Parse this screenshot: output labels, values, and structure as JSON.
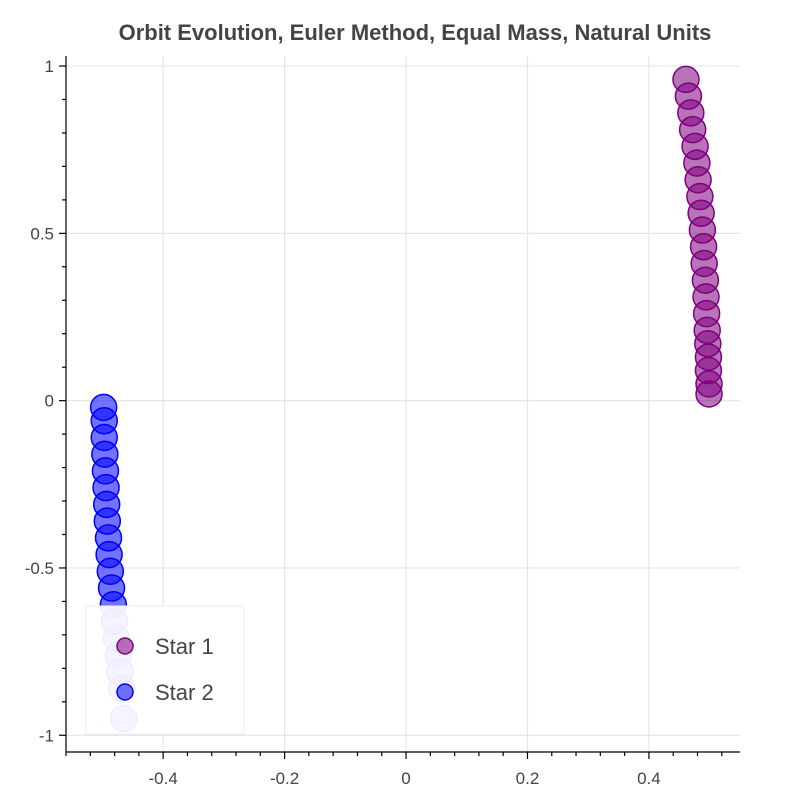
{
  "chart_data": {
    "type": "scatter",
    "title": "Orbit Evolution, Euler Method, Equal Mass, Natural Units",
    "xlabel": "",
    "ylabel": "",
    "xlim": [
      -0.56,
      0.55
    ],
    "ylim": [
      -1.05,
      1.03
    ],
    "grid": true,
    "legend_placement": "bottom-left",
    "x_ticks": [
      -0.4,
      -0.2,
      0,
      0.2,
      0.4
    ],
    "x_tick_labels": [
      "-0.4",
      "-0.2",
      "0",
      "0.2",
      "0.4"
    ],
    "y_ticks": [
      -1,
      -0.5,
      0,
      0.5,
      1
    ],
    "y_tick_labels": [
      "-1",
      "-0.5",
      "0",
      "0.5",
      "1"
    ],
    "series": [
      {
        "name": "Star 1",
        "color": "#800080",
        "x": [
          0.461,
          0.465,
          0.469,
          0.472,
          0.476,
          0.479,
          0.481,
          0.484,
          0.486,
          0.488,
          0.49,
          0.491,
          0.493,
          0.494,
          0.495,
          0.496,
          0.497,
          0.498,
          0.498,
          0.499,
          0.499
        ],
        "y": [
          0.96,
          0.91,
          0.86,
          0.81,
          0.76,
          0.71,
          0.66,
          0.61,
          0.56,
          0.51,
          0.46,
          0.41,
          0.36,
          0.31,
          0.26,
          0.21,
          0.17,
          0.13,
          0.09,
          0.05,
          0.02
        ]
      },
      {
        "name": "Star 2",
        "color": "#0000ff",
        "x": [
          -0.498,
          -0.497,
          -0.497,
          -0.496,
          -0.495,
          -0.494,
          -0.493,
          -0.492,
          -0.49,
          -0.489,
          -0.487,
          -0.485,
          -0.482,
          -0.48,
          -0.477,
          -0.474,
          -0.471,
          -0.468,
          -0.465
        ],
        "y": [
          -0.02,
          -0.06,
          -0.11,
          -0.16,
          -0.21,
          -0.26,
          -0.31,
          -0.36,
          -0.41,
          -0.46,
          -0.51,
          -0.56,
          -0.61,
          -0.66,
          -0.71,
          -0.76,
          -0.81,
          -0.86,
          -0.95
        ]
      }
    ]
  }
}
